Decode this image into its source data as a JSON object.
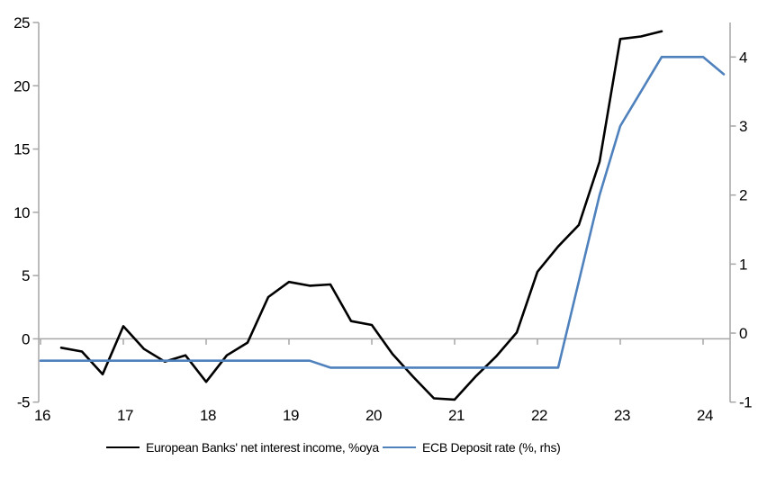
{
  "chart_data": {
    "type": "line",
    "title": "",
    "xlabel": "",
    "ylabel_left": "",
    "ylabel_right": "",
    "grid": "zero-line-only",
    "legend_position": "bottom",
    "x_axis": {
      "ticks": [
        16,
        17,
        18,
        19,
        20,
        21,
        22,
        23,
        24
      ],
      "min": 16,
      "max": 24.33
    },
    "y_left": {
      "ticks": [
        -5,
        0,
        5,
        10,
        15,
        20,
        25
      ],
      "min": -5,
      "max": 25
    },
    "y_right": {
      "ticks": [
        -1,
        0,
        1,
        2,
        3,
        4
      ],
      "min": -1,
      "max": 4.5
    },
    "series": [
      {
        "name": "European Banks' net interest income, %oya",
        "axis": "left",
        "color": "#000000",
        "x": [
          16.25,
          16.5,
          16.75,
          17.0,
          17.25,
          17.5,
          17.75,
          18.0,
          18.25,
          18.5,
          18.75,
          19.0,
          19.25,
          19.5,
          19.75,
          20.0,
          20.25,
          20.5,
          20.75,
          21.0,
          21.25,
          21.5,
          21.75,
          22.0,
          22.25,
          22.5,
          22.75,
          23.0,
          23.25,
          23.5
        ],
        "values": [
          -0.7,
          -1.0,
          -2.8,
          1.0,
          -0.8,
          -1.8,
          -1.3,
          -3.4,
          -1.3,
          -0.3,
          3.3,
          4.5,
          4.2,
          4.3,
          1.4,
          1.1,
          -1.2,
          -3.0,
          -4.7,
          -4.8,
          -3.0,
          -1.4,
          0.5,
          5.3,
          7.3,
          9.0,
          14.0,
          23.7,
          23.9,
          24.3
        ]
      },
      {
        "name": "ECB Deposit rate (%, rhs)",
        "axis": "right",
        "color": "#4f81bd",
        "x": [
          16.0,
          16.25,
          16.5,
          16.75,
          17.0,
          17.25,
          17.5,
          17.75,
          18.0,
          18.25,
          18.5,
          18.75,
          19.0,
          19.25,
          19.5,
          19.75,
          20.0,
          20.25,
          20.5,
          20.75,
          21.0,
          21.25,
          21.5,
          21.75,
          22.0,
          22.25,
          22.5,
          22.75,
          23.0,
          23.25,
          23.5,
          23.75,
          24.0,
          24.25
        ],
        "values": [
          -0.4,
          -0.4,
          -0.4,
          -0.4,
          -0.4,
          -0.4,
          -0.4,
          -0.4,
          -0.4,
          -0.4,
          -0.4,
          -0.4,
          -0.4,
          -0.4,
          -0.5,
          -0.5,
          -0.5,
          -0.5,
          -0.5,
          -0.5,
          -0.5,
          -0.5,
          -0.5,
          -0.5,
          -0.5,
          -0.5,
          0.75,
          2.0,
          3.0,
          3.5,
          4.0,
          4.0,
          4.0,
          3.75
        ]
      }
    ]
  },
  "colors": {
    "axis": "#a6a6a6",
    "background": "#ffffff",
    "nii_line": "#000000",
    "ecb_line": "#4f81bd"
  }
}
